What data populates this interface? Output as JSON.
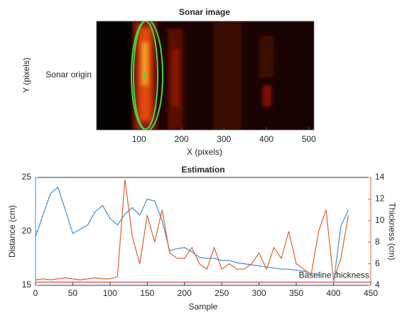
{
  "chart_data": [
    {
      "type": "image",
      "title": "Sonar image",
      "xlabel": "X (pixels)",
      "ylabel": "Y (pixels)",
      "origin_label": "Sonar origin",
      "xlim": [
        0,
        512
      ],
      "xticks": [
        100,
        200,
        300,
        400,
        500
      ]
    },
    {
      "type": "line",
      "title": "Estimation",
      "xlabel": "Sample",
      "ylabel": "Distance (cm)",
      "y2label": "Thickness (cm)",
      "x": [
        0,
        10,
        20,
        30,
        40,
        50,
        60,
        70,
        80,
        90,
        100,
        110,
        120,
        130,
        140,
        150,
        160,
        170,
        180,
        190,
        200,
        210,
        220,
        230,
        240,
        250,
        260,
        270,
        280,
        290,
        300,
        310,
        320,
        330,
        340,
        350,
        360,
        370,
        380,
        390,
        400,
        410,
        420
      ],
      "series": [
        {
          "name": "Distance (cm)",
          "color": "#3d8fd1",
          "values": [
            19.5,
            21.5,
            23.5,
            24.1,
            22,
            19.8,
            20.2,
            20.6,
            21.8,
            22.4,
            21.2,
            20.6,
            21.6,
            22.2,
            21.5,
            23,
            22.8,
            21,
            18.2,
            18.4,
            18.5,
            18.1,
            17.6,
            17.5,
            17.5,
            17.3,
            17.3,
            17.1,
            17,
            16.9,
            16.8,
            16.7,
            16.6,
            16.5,
            16.5,
            16.4,
            16.3,
            16.1,
            16,
            null,
            15.2,
            20.5,
            22
          ]
        },
        {
          "name": "Thickness (cm)",
          "color": "#d9622b",
          "axis": "y2",
          "values": [
            4.5,
            4.6,
            4.5,
            4.6,
            4.7,
            4.6,
            4.5,
            4.6,
            4.7,
            4.6,
            4.6,
            4.8,
            13.8,
            8.5,
            6,
            10.5,
            8,
            11,
            7,
            6.5,
            6.5,
            7.5,
            6,
            5.5,
            7.5,
            5.5,
            6,
            5.5,
            5.5,
            6,
            7,
            5.5,
            7.5,
            6.5,
            9,
            6,
            5.5,
            5,
            9,
            11,
            4.5,
            6.5,
            10.5
          ]
        }
      ],
      "baseline_thickness": 4.3,
      "baseline_label": "Baseline thickness",
      "baseline_color": "#e0304a",
      "xlim": [
        0,
        450
      ],
      "xticks": [
        0,
        50,
        100,
        150,
        200,
        250,
        300,
        350,
        400,
        450
      ],
      "ylim": [
        15,
        25
      ],
      "yticks": [
        15,
        20,
        25
      ],
      "y2lim": [
        4,
        14
      ],
      "y2ticks": [
        4,
        6,
        8,
        10,
        12,
        14
      ]
    }
  ]
}
